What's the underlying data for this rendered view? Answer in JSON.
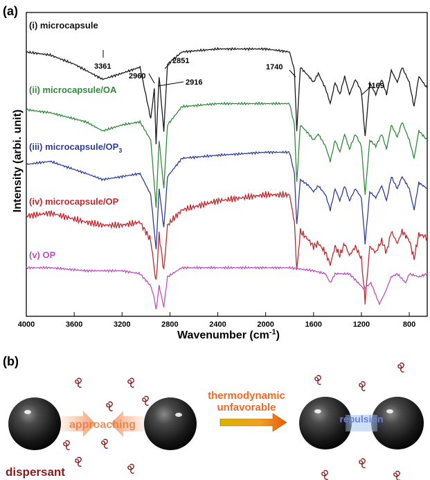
{
  "panel_a": {
    "label": "(a)",
    "ylabel": "Intensity (arbi. unit)",
    "xlabel_main": "Wavenumber (cm",
    "xlabel_sup": "-1",
    "xlabel_close": ")",
    "series_labels": [
      {
        "main": "(i) microcapsule",
        "sub": ""
      },
      {
        "main": "(ii) microcapsule/OA",
        "sub": ""
      },
      {
        "main": "(iii) microcapsule/OP",
        "sub": "3"
      },
      {
        "main": "(iv) microcapsule/OP",
        "sub": ""
      },
      {
        "main": "(v) OP",
        "sub": ""
      }
    ],
    "peak_labels": [
      "3361",
      "2960",
      "2851",
      "2916",
      "1740",
      "1169"
    ]
  },
  "chart_data": {
    "type": "line",
    "xlabel": "Wavenumber (cm-1)",
    "ylabel": "Intensity (arbi. unit)",
    "xlim": [
      4000,
      650
    ],
    "x_reversed": true,
    "x_ticks": [
      4000,
      3600,
      3200,
      2800,
      2400,
      2000,
      1600,
      1200,
      800
    ],
    "y_tick_labels": false,
    "peak_annotations": [
      3361,
      2960,
      2851,
      2916,
      1740,
      1169
    ],
    "series": [
      {
        "name": "(i) microcapsule",
        "color": "#1a1a1a",
        "baseline": 0.87,
        "amp": 1.0,
        "points": [
          [
            4000,
            0.0
          ],
          [
            3800,
            -0.01
          ],
          [
            3600,
            -0.04
          ],
          [
            3361,
            -0.09
          ],
          [
            3200,
            -0.07
          ],
          [
            3050,
            -0.05
          ],
          [
            2960,
            -0.22
          ],
          [
            2930,
            -0.12
          ],
          [
            2916,
            -0.3
          ],
          [
            2890,
            -0.08
          ],
          [
            2851,
            -0.26
          ],
          [
            2820,
            -0.04
          ],
          [
            2700,
            0.0
          ],
          [
            2400,
            0.01
          ],
          [
            2000,
            0.01
          ],
          [
            1800,
            0.0
          ],
          [
            1760,
            -0.06
          ],
          [
            1740,
            -0.26
          ],
          [
            1710,
            -0.05
          ],
          [
            1640,
            -0.08
          ],
          [
            1600,
            -0.1
          ],
          [
            1560,
            -0.07
          ],
          [
            1500,
            -0.12
          ],
          [
            1460,
            -0.17
          ],
          [
            1420,
            -0.1
          ],
          [
            1380,
            -0.14
          ],
          [
            1340,
            -0.08
          ],
          [
            1300,
            -0.14
          ],
          [
            1250,
            -0.09
          ],
          [
            1200,
            -0.13
          ],
          [
            1169,
            -0.28
          ],
          [
            1130,
            -0.1
          ],
          [
            1080,
            -0.14
          ],
          [
            1030,
            -0.09
          ],
          [
            990,
            -0.14
          ],
          [
            950,
            -0.06
          ],
          [
            900,
            -0.1
          ],
          [
            860,
            -0.05
          ],
          [
            800,
            -0.1
          ],
          [
            760,
            -0.18
          ],
          [
            720,
            -0.08
          ],
          [
            650,
            -0.12
          ]
        ]
      },
      {
        "name": "(ii) microcapsule/OA",
        "color": "#2e8b3a",
        "baseline": 0.68,
        "amp": 1.0,
        "points": [
          [
            4000,
            0.0
          ],
          [
            3800,
            -0.01
          ],
          [
            3500,
            -0.04
          ],
          [
            3361,
            -0.07
          ],
          [
            3200,
            -0.05
          ],
          [
            3050,
            -0.04
          ],
          [
            2960,
            -0.1
          ],
          [
            2916,
            -0.32
          ],
          [
            2890,
            -0.1
          ],
          [
            2851,
            -0.26
          ],
          [
            2820,
            -0.05
          ],
          [
            2700,
            0.01
          ],
          [
            2400,
            0.02
          ],
          [
            2000,
            0.02
          ],
          [
            1800,
            0.02
          ],
          [
            1760,
            -0.05
          ],
          [
            1740,
            -0.24
          ],
          [
            1710,
            -0.05
          ],
          [
            1640,
            -0.08
          ],
          [
            1600,
            -0.1
          ],
          [
            1560,
            -0.08
          ],
          [
            1500,
            -0.12
          ],
          [
            1460,
            -0.17
          ],
          [
            1420,
            -0.1
          ],
          [
            1380,
            -0.14
          ],
          [
            1340,
            -0.08
          ],
          [
            1300,
            -0.13
          ],
          [
            1250,
            -0.08
          ],
          [
            1200,
            -0.12
          ],
          [
            1169,
            -0.28
          ],
          [
            1130,
            -0.1
          ],
          [
            1080,
            -0.12
          ],
          [
            1030,
            -0.08
          ],
          [
            990,
            -0.13
          ],
          [
            950,
            -0.05
          ],
          [
            900,
            -0.09
          ],
          [
            860,
            -0.04
          ],
          [
            800,
            -0.1
          ],
          [
            760,
            -0.16
          ],
          [
            720,
            -0.07
          ],
          [
            650,
            -0.1
          ]
        ]
      },
      {
        "name": "(iii) microcapsule/OP3",
        "color": "#2e3d9a",
        "baseline": 0.5,
        "amp": 1.0,
        "points": [
          [
            4000,
            0.0
          ],
          [
            3800,
            0.01
          ],
          [
            3500,
            -0.03
          ],
          [
            3361,
            -0.05
          ],
          [
            3200,
            -0.04
          ],
          [
            3050,
            -0.03
          ],
          [
            2960,
            -0.1
          ],
          [
            2916,
            -0.28
          ],
          [
            2890,
            -0.08
          ],
          [
            2851,
            -0.21
          ],
          [
            2820,
            -0.04
          ],
          [
            2700,
            0.02
          ],
          [
            2400,
            0.03
          ],
          [
            2000,
            0.04
          ],
          [
            1800,
            0.04
          ],
          [
            1760,
            -0.03
          ],
          [
            1740,
            -0.2
          ],
          [
            1710,
            -0.05
          ],
          [
            1640,
            -0.07
          ],
          [
            1600,
            -0.09
          ],
          [
            1560,
            -0.07
          ],
          [
            1500,
            -0.1
          ],
          [
            1460,
            -0.15
          ],
          [
            1420,
            -0.08
          ],
          [
            1380,
            -0.12
          ],
          [
            1340,
            -0.07
          ],
          [
            1300,
            -0.12
          ],
          [
            1250,
            -0.08
          ],
          [
            1200,
            -0.11
          ],
          [
            1169,
            -0.26
          ],
          [
            1130,
            -0.09
          ],
          [
            1080,
            -0.11
          ],
          [
            1030,
            -0.07
          ],
          [
            990,
            -0.12
          ],
          [
            950,
            -0.04
          ],
          [
            900,
            -0.08
          ],
          [
            860,
            -0.04
          ],
          [
            800,
            -0.08
          ],
          [
            760,
            -0.15
          ],
          [
            720,
            -0.06
          ],
          [
            650,
            -0.08
          ]
        ]
      },
      {
        "name": "(iv) microcapsule/OP",
        "color": "#c0282d",
        "baseline": 0.33,
        "amp": 1.0,
        "points": [
          [
            4000,
            0.0
          ],
          [
            3800,
            0.01
          ],
          [
            3500,
            -0.02
          ],
          [
            3361,
            -0.03
          ],
          [
            3200,
            -0.03
          ],
          [
            3050,
            -0.02
          ],
          [
            2960,
            -0.08
          ],
          [
            2916,
            -0.22
          ],
          [
            2890,
            -0.06
          ],
          [
            2851,
            -0.18
          ],
          [
            2820,
            -0.03
          ],
          [
            2700,
            0.02
          ],
          [
            2400,
            0.05
          ],
          [
            2000,
            0.07
          ],
          [
            1800,
            0.07
          ],
          [
            1760,
            -0.02
          ],
          [
            1740,
            -0.18
          ],
          [
            1710,
            -0.05
          ],
          [
            1640,
            -0.08
          ],
          [
            1600,
            -0.1
          ],
          [
            1560,
            -0.09
          ],
          [
            1500,
            -0.12
          ],
          [
            1460,
            -0.16
          ],
          [
            1420,
            -0.1
          ],
          [
            1380,
            -0.13
          ],
          [
            1340,
            -0.09
          ],
          [
            1300,
            -0.13
          ],
          [
            1250,
            -0.1
          ],
          [
            1200,
            -0.14
          ],
          [
            1169,
            -0.28
          ],
          [
            1130,
            -0.1
          ],
          [
            1080,
            -0.12
          ],
          [
            1030,
            -0.08
          ],
          [
            990,
            -0.12
          ],
          [
            950,
            -0.05
          ],
          [
            900,
            -0.09
          ],
          [
            860,
            -0.05
          ],
          [
            800,
            -0.08
          ],
          [
            760,
            -0.14
          ],
          [
            720,
            -0.06
          ],
          [
            650,
            -0.07
          ]
        ]
      },
      {
        "name": "(v) OP",
        "color": "#c04cc0",
        "baseline": 0.16,
        "amp": 1.0,
        "points": [
          [
            4000,
            0.0
          ],
          [
            3800,
            0.0
          ],
          [
            3500,
            -0.01
          ],
          [
            3361,
            -0.01
          ],
          [
            3200,
            -0.01
          ],
          [
            3050,
            -0.02
          ],
          [
            2960,
            -0.06
          ],
          [
            2930,
            -0.1
          ],
          [
            2916,
            -0.14
          ],
          [
            2890,
            -0.06
          ],
          [
            2851,
            -0.13
          ],
          [
            2820,
            -0.03
          ],
          [
            2700,
            0.0
          ],
          [
            2400,
            0.0
          ],
          [
            2000,
            0.0
          ],
          [
            1800,
            0.0
          ],
          [
            1600,
            -0.01
          ],
          [
            1500,
            -0.02
          ],
          [
            1460,
            -0.05
          ],
          [
            1420,
            -0.02
          ],
          [
            1350,
            -0.02
          ],
          [
            1300,
            -0.02
          ],
          [
            1250,
            -0.04
          ],
          [
            1180,
            -0.07
          ],
          [
            1120,
            -0.05
          ],
          [
            1050,
            -0.12
          ],
          [
            1000,
            -0.08
          ],
          [
            950,
            -0.03
          ],
          [
            900,
            -0.02
          ],
          [
            830,
            -0.05
          ],
          [
            800,
            -0.02
          ],
          [
            720,
            -0.03
          ],
          [
            650,
            -0.02
          ]
        ]
      }
    ]
  },
  "panel_b": {
    "label": "(b)",
    "approaching_text": "approaching",
    "dispersant_text": "dispersant",
    "arrow_text_line1": "thermodynamic",
    "arrow_text_line2": "unfavorable",
    "repulsion_text": "repulsion"
  },
  "colors": {
    "axis": "#000000",
    "approaching": "#e8763a",
    "dispersant": "#8b1a1a",
    "arrow_text": "#ee6a25",
    "repulsion": "#6d7ed8",
    "molecule": "#8b1a1a"
  },
  "icons": [
    "sphere-particle-icon",
    "dispersant-molecule-icon",
    "gradient-arrow-icon"
  ]
}
